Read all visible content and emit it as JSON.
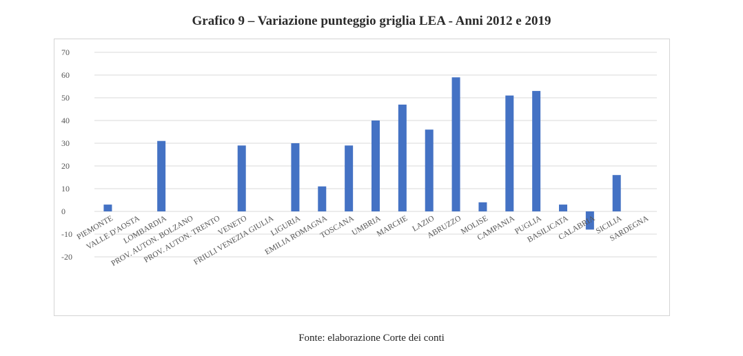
{
  "page": {
    "title": "Grafico 9 – Variazione punteggio griglia LEA - Anni 2012 e 2019",
    "source": "Fonte: elaborazione Corte dei conti"
  },
  "chart_data": {
    "type": "bar",
    "title": "Grafico 9 – Variazione punteggio griglia LEA - Anni 2012 e 2019",
    "xlabel": "",
    "ylabel": "",
    "ylim": [
      -20,
      70
    ],
    "yticks": [
      -20,
      -10,
      0,
      10,
      20,
      30,
      40,
      50,
      60,
      70
    ],
    "grid": true,
    "legend": "none",
    "bar_color": "#4472c4",
    "categories": [
      "PIEMONTE",
      "VALLE D'AOSTA",
      "LOMBARDIA",
      "PROV. AUTON. BOLZANO",
      "PROV. AUTON. TRENTO",
      "VENETO",
      "FRIULI VENEZIA GIULIA",
      "LIGURIA",
      "EMILIA ROMAGNA",
      "TOSCANA",
      "UMBRIA",
      "MARCHE",
      "LAZIO",
      "ABRUZZO",
      "MOLISE",
      "CAMPANIA",
      "PUGLIA",
      "BASILICATA",
      "CALABRIA",
      "SICILIA",
      "SARDEGNA"
    ],
    "values": [
      3,
      0,
      31,
      0,
      0,
      29,
      0,
      30,
      11,
      29,
      40,
      47,
      36,
      59,
      4,
      51,
      53,
      3,
      -8,
      16,
      0
    ]
  }
}
